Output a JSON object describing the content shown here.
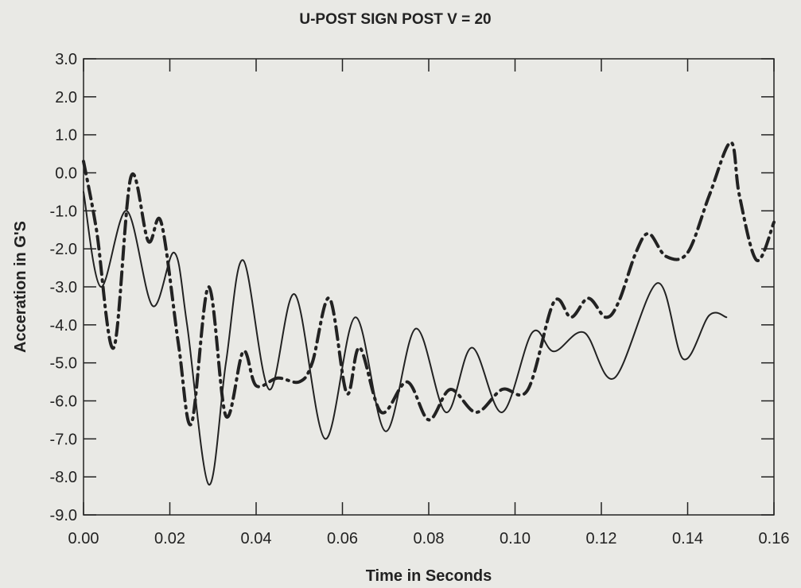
{
  "chart_data": {
    "type": "line",
    "title": "U-POST SIGN POST V = 20",
    "xlabel": "Time in Seconds",
    "ylabel": "Acceration in G'S",
    "xlim": [
      0,
      0.16
    ],
    "ylim": [
      -9,
      3
    ],
    "x_ticks": [
      "0.00",
      "0.02",
      "0.04",
      "0.06",
      "0.08",
      "0.10",
      "0.12",
      "0.14",
      "0.16"
    ],
    "y_ticks": [
      "3.0",
      "2.0",
      "1.0",
      "0.0",
      "-1.0",
      "-2.0",
      "-3.0",
      "-4.0",
      "-5.0",
      "-6.0",
      "-7.0",
      "-8.0",
      "-9.0"
    ],
    "grid": false,
    "colors": {
      "background": "#e9e9e5",
      "line": "#222222"
    },
    "series": [
      {
        "style": "solid",
        "points": [
          [
            0.0,
            -0.5
          ],
          [
            0.004,
            -3.0
          ],
          [
            0.01,
            -1.0
          ],
          [
            0.016,
            -3.5
          ],
          [
            0.021,
            -2.1
          ],
          [
            0.024,
            -4.0
          ],
          [
            0.029,
            -8.2
          ],
          [
            0.033,
            -5.0
          ],
          [
            0.037,
            -2.3
          ],
          [
            0.043,
            -5.7
          ],
          [
            0.049,
            -3.2
          ],
          [
            0.056,
            -7.0
          ],
          [
            0.063,
            -3.8
          ],
          [
            0.07,
            -6.8
          ],
          [
            0.077,
            -4.1
          ],
          [
            0.084,
            -6.3
          ],
          [
            0.09,
            -4.6
          ],
          [
            0.097,
            -6.3
          ],
          [
            0.104,
            -4.2
          ],
          [
            0.109,
            -4.7
          ],
          [
            0.116,
            -4.2
          ],
          [
            0.123,
            -5.4
          ],
          [
            0.133,
            -2.9
          ],
          [
            0.139,
            -4.9
          ],
          [
            0.145,
            -3.75
          ],
          [
            0.149,
            -3.8
          ]
        ]
      },
      {
        "style": "dash-dot",
        "points": [
          [
            0.0,
            0.3
          ],
          [
            0.003,
            -1.5
          ],
          [
            0.007,
            -4.6
          ],
          [
            0.011,
            -0.1
          ],
          [
            0.015,
            -1.8
          ],
          [
            0.018,
            -1.3
          ],
          [
            0.022,
            -4.5
          ],
          [
            0.025,
            -6.6
          ],
          [
            0.029,
            -3.0
          ],
          [
            0.033,
            -6.4
          ],
          [
            0.037,
            -4.7
          ],
          [
            0.04,
            -5.6
          ],
          [
            0.045,
            -5.4
          ],
          [
            0.05,
            -5.5
          ],
          [
            0.053,
            -5.0
          ],
          [
            0.057,
            -3.3
          ],
          [
            0.061,
            -5.8
          ],
          [
            0.064,
            -4.6
          ],
          [
            0.069,
            -6.3
          ],
          [
            0.075,
            -5.5
          ],
          [
            0.08,
            -6.5
          ],
          [
            0.085,
            -5.7
          ],
          [
            0.091,
            -6.3
          ],
          [
            0.097,
            -5.7
          ],
          [
            0.103,
            -5.7
          ],
          [
            0.109,
            -3.4
          ],
          [
            0.113,
            -3.8
          ],
          [
            0.117,
            -3.3
          ],
          [
            0.121,
            -3.8
          ],
          [
            0.124,
            -3.4
          ],
          [
            0.128,
            -2.1
          ],
          [
            0.131,
            -1.6
          ],
          [
            0.135,
            -2.2
          ],
          [
            0.14,
            -2.1
          ],
          [
            0.145,
            -0.6
          ],
          [
            0.15,
            0.8
          ],
          [
            0.152,
            -0.6
          ],
          [
            0.156,
            -2.3
          ],
          [
            0.16,
            -1.3
          ]
        ]
      }
    ]
  }
}
